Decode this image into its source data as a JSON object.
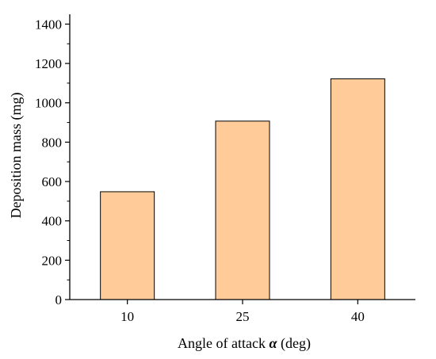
{
  "chart_data": {
    "type": "bar",
    "categories": [
      "10",
      "25",
      "40"
    ],
    "values": [
      548,
      907,
      1122
    ],
    "xlabel": "Angle of attack α (deg)",
    "ylabel": "Deposition mass (mg)",
    "ylim": [
      0,
      1450
    ],
    "yticks": [
      0,
      200,
      400,
      600,
      800,
      1000,
      1200,
      1400
    ],
    "grid": false,
    "legend": "none",
    "colors": {
      "bar_fill": "#FFCC99",
      "bar_stroke": "#000000",
      "axis": "#000000"
    }
  }
}
